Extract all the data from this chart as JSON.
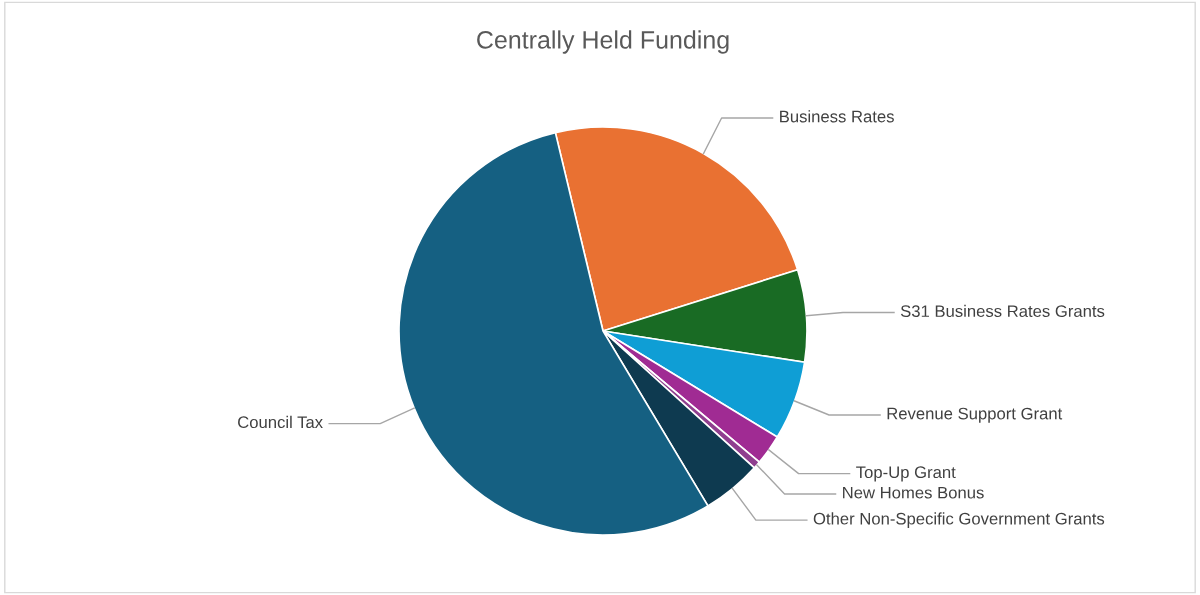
{
  "chart_data": {
    "type": "pie",
    "title": "Centrally Held Funding",
    "categories": [
      "Business Rates",
      "S31 Business Rates Grants",
      "Revenue Support Grant",
      "Top-Up Grant",
      "New Homes Bonus",
      "Other Non-Specific Government Grants",
      "Council Tax"
    ],
    "values": [
      23.9,
      7.3,
      6.25,
      2.4,
      0.6,
      4.7,
      54.85
    ],
    "colors": [
      "#e97132",
      "#196b24",
      "#0f9ed5",
      "#a02b93",
      "#8f3f8f",
      "#0e3a50",
      "#156082"
    ],
    "legend": false
  }
}
